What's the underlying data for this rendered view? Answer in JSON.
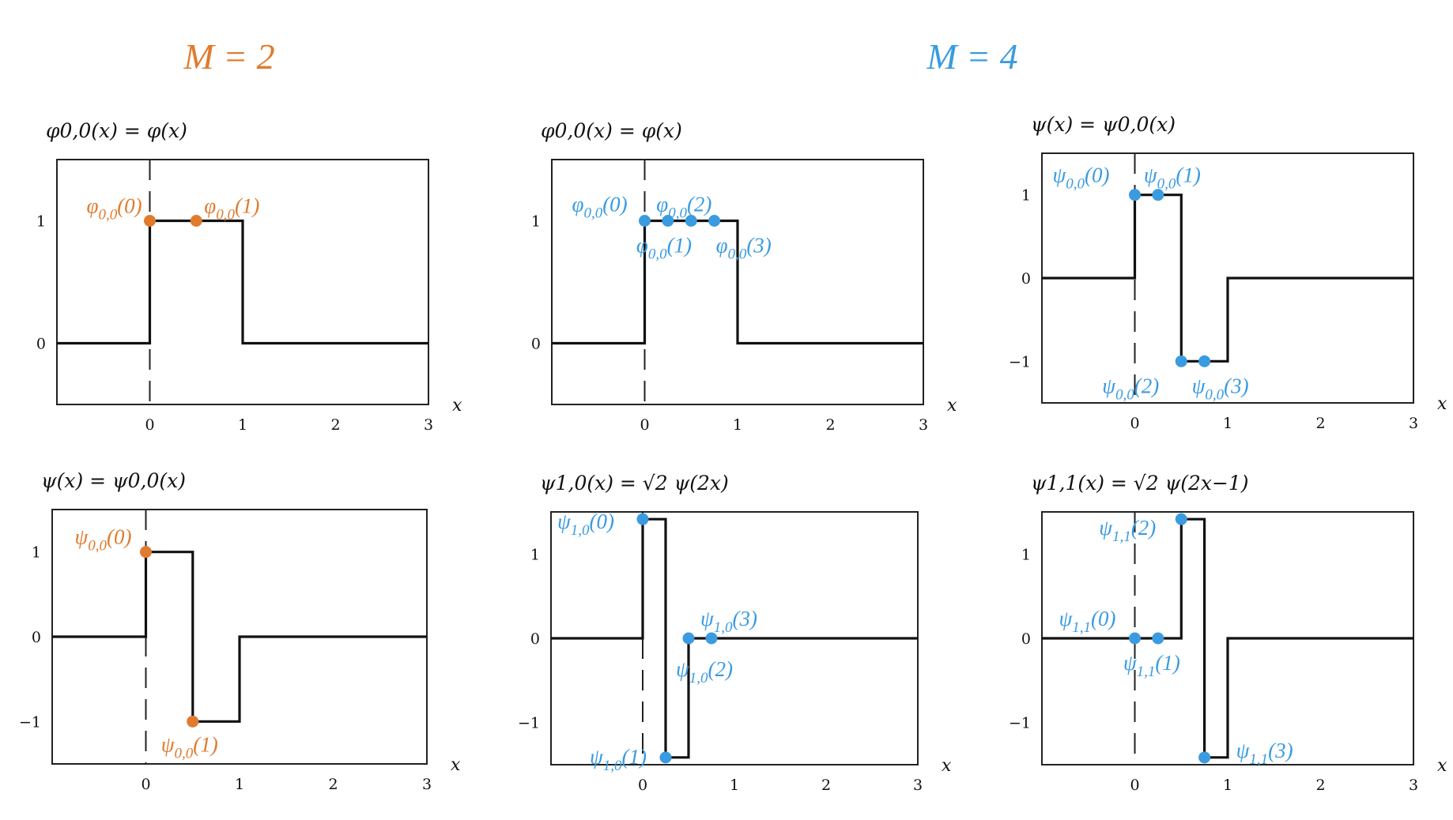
{
  "headings": {
    "left": "M = 2",
    "right": "M = 4"
  },
  "colors": {
    "orange": "#e07b2e",
    "blue": "#3a9be0",
    "curve": "#111111"
  },
  "chart_data": [
    {
      "type": "line",
      "group": "M = 2",
      "title": "φ0,0(x) = φ(x)",
      "xlabel": "x",
      "xlim": [
        -1,
        3
      ],
      "ylim": [
        -0.5,
        1.5
      ],
      "xticks": [
        "0",
        "1",
        "2",
        "3"
      ],
      "yticks": [
        "0",
        "1"
      ],
      "steps": [
        [
          -1,
          0
        ],
        [
          0,
          0
        ],
        [
          0,
          1
        ],
        [
          1,
          1
        ],
        [
          1,
          0
        ],
        [
          3,
          0
        ]
      ],
      "color": "orange",
      "markers": [
        {
          "x": 0,
          "y": 1,
          "label": "φ0,0(0)",
          "dx": -80,
          "dy": -10
        },
        {
          "x": 0.5,
          "y": 1,
          "label": "φ0,0(1)",
          "dx": 10,
          "dy": -10
        }
      ]
    },
    {
      "type": "line",
      "group": "M = 4",
      "title": "φ0,0(x) = φ(x)",
      "xlabel": "x",
      "xlim": [
        -1,
        3
      ],
      "ylim": [
        -0.5,
        1.5
      ],
      "xticks": [
        "0",
        "1",
        "2",
        "3"
      ],
      "yticks": [
        "0",
        "1"
      ],
      "steps": [
        [
          -1,
          0
        ],
        [
          0,
          0
        ],
        [
          0,
          1
        ],
        [
          1,
          1
        ],
        [
          1,
          0
        ],
        [
          3,
          0
        ]
      ],
      "color": "blue",
      "markers": [
        {
          "x": 0,
          "y": 1,
          "label": "φ0,0(0)",
          "dx": -92,
          "dy": -12
        },
        {
          "x": 0.25,
          "y": 1,
          "label": "φ0,0(1)",
          "dx": -40,
          "dy": 40
        },
        {
          "x": 0.5,
          "y": 1,
          "label": "φ0,0(2)",
          "dx": -44,
          "dy": -12
        },
        {
          "x": 0.75,
          "y": 1,
          "label": "φ0,0(3)",
          "dx": 2,
          "dy": 40
        }
      ]
    },
    {
      "type": "line",
      "group": "M = 4",
      "title": "ψ(x) = ψ0,0(x)",
      "xlabel": "x",
      "xlim": [
        -1,
        3
      ],
      "ylim": [
        -1.5,
        1.5
      ],
      "xticks": [
        "0",
        "1",
        "2",
        "3"
      ],
      "yticks": [
        "−1",
        "0",
        "1"
      ],
      "steps": [
        [
          -1,
          0
        ],
        [
          0,
          0
        ],
        [
          0,
          1
        ],
        [
          0.5,
          1
        ],
        [
          0.5,
          -1
        ],
        [
          1,
          -1
        ],
        [
          1,
          0
        ],
        [
          3,
          0
        ]
      ],
      "color": "blue",
      "markers": [
        {
          "x": 0,
          "y": 1,
          "label": "ψ0,0(0)",
          "dx": -104,
          "dy": -16
        },
        {
          "x": 0.25,
          "y": 1,
          "label": "ψ0,0(1)",
          "dx": -18,
          "dy": -16
        },
        {
          "x": 0.5,
          "y": -1,
          "label": "ψ0,0(2)",
          "dx": -100,
          "dy": 40
        },
        {
          "x": 0.75,
          "y": -1,
          "label": "ψ0,0(3)",
          "dx": -16,
          "dy": 40
        }
      ]
    },
    {
      "type": "line",
      "group": "M = 2",
      "title": "ψ(x) = ψ0,0(x)",
      "xlabel": "x",
      "xlim": [
        -1,
        3
      ],
      "ylim": [
        -1.5,
        1.5
      ],
      "xticks": [
        "0",
        "1",
        "2",
        "3"
      ],
      "yticks": [
        "−1",
        "0",
        "1"
      ],
      "steps": [
        [
          -1,
          0
        ],
        [
          0,
          0
        ],
        [
          0,
          1
        ],
        [
          0.5,
          1
        ],
        [
          0.5,
          -1
        ],
        [
          1,
          -1
        ],
        [
          1,
          0
        ],
        [
          3,
          0
        ]
      ],
      "color": "orange",
      "markers": [
        {
          "x": 0,
          "y": 1,
          "label": "ψ0,0(0)",
          "dx": -90,
          "dy": -10
        },
        {
          "x": 0.5,
          "y": -1,
          "label": "ψ0,0(1)",
          "dx": -40,
          "dy": 38
        }
      ]
    },
    {
      "type": "line",
      "group": "M = 4",
      "title": "ψ1,0(x) = √2 ψ(2x)",
      "xlabel": "x",
      "xlim": [
        -1,
        3
      ],
      "ylim": [
        -1.5,
        1.5
      ],
      "xticks": [
        "0",
        "1",
        "2",
        "3"
      ],
      "yticks": [
        "−1",
        "0",
        "1"
      ],
      "steps": [
        [
          -1,
          0
        ],
        [
          0,
          0
        ],
        [
          0,
          1.414
        ],
        [
          0.25,
          1.414
        ],
        [
          0.25,
          -1.414
        ],
        [
          0.5,
          -1.414
        ],
        [
          0.5,
          0
        ],
        [
          3,
          0
        ]
      ],
      "color": "blue",
      "markers": [
        {
          "x": 0,
          "y": 1.414,
          "label": "ψ1,0(0)",
          "dx": -108,
          "dy": 12
        },
        {
          "x": 0.25,
          "y": -1.414,
          "label": "ψ1,0(1)",
          "dx": -96,
          "dy": 8
        },
        {
          "x": 0.5,
          "y": 0,
          "label": "ψ1,0(2)",
          "dx": -16,
          "dy": 48
        },
        {
          "x": 0.75,
          "y": 0,
          "label": "ψ1,0(3)",
          "dx": -14,
          "dy": -16
        }
      ]
    },
    {
      "type": "line",
      "group": "M = 4",
      "title": "ψ1,1(x) = √2 ψ(2x−1)",
      "xlabel": "x",
      "xlim": [
        -1,
        3
      ],
      "ylim": [
        -1.5,
        1.5
      ],
      "xticks": [
        "0",
        "1",
        "2",
        "3"
      ],
      "yticks": [
        "−1",
        "0",
        "1"
      ],
      "steps": [
        [
          -1,
          0
        ],
        [
          0.5,
          0
        ],
        [
          0.5,
          1.414
        ],
        [
          0.75,
          1.414
        ],
        [
          0.75,
          -1.414
        ],
        [
          1,
          -1.414
        ],
        [
          1,
          0
        ],
        [
          3,
          0
        ]
      ],
      "color": "blue",
      "markers": [
        {
          "x": 0,
          "y": 0,
          "label": "ψ1,1(0)",
          "dx": -96,
          "dy": -16
        },
        {
          "x": 0.25,
          "y": 0,
          "label": "ψ1,1(1)",
          "dx": -44,
          "dy": 40
        },
        {
          "x": 0.5,
          "y": 1.414,
          "label": "ψ1,1(2)",
          "dx": -104,
          "dy": 20
        },
        {
          "x": 0.75,
          "y": -1.414,
          "label": "ψ1,1(3)",
          "dx": 40,
          "dy": 0
        }
      ]
    }
  ]
}
